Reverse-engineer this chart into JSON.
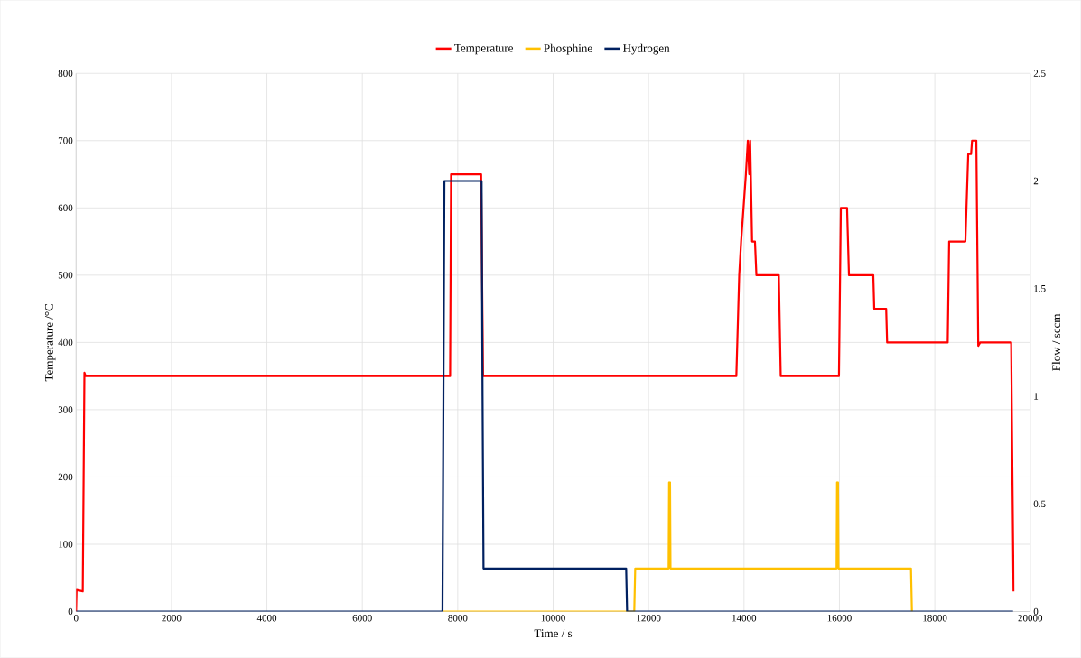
{
  "chart_data": {
    "type": "line",
    "xlabel": "Time / s",
    "ylabel": "Temperature /°C",
    "y2label": "Flow / sccm",
    "xlim": [
      0,
      20000
    ],
    "xticks": [
      0,
      2000,
      4000,
      6000,
      8000,
      10000,
      12000,
      14000,
      16000,
      18000,
      20000
    ],
    "ylim": [
      0,
      800
    ],
    "yticks": [
      0,
      100,
      200,
      300,
      400,
      500,
      600,
      700,
      800
    ],
    "y2lim": [
      0,
      2.5
    ],
    "y2ticks": [
      0,
      0.5,
      1,
      1.5,
      2,
      2.5
    ],
    "grid": true,
    "legend": "top",
    "series": [
      {
        "name": "Temperature",
        "color": "#ff0000",
        "x": [
          0,
          10,
          140,
          175,
          200,
          7840,
          7860,
          8490,
          8530,
          13840,
          13860,
          13880,
          13900,
          13940,
          13990,
          14040,
          14080,
          14110,
          14130,
          14170,
          14230,
          14260,
          14730,
          14770,
          15990,
          16030,
          16160,
          16200,
          16710,
          16730,
          16980,
          17000,
          18270,
          18300,
          18640,
          18700,
          18760,
          18780,
          18870,
          18910,
          18950,
          19600,
          19650
        ],
        "values": [
          0,
          32,
          30,
          355,
          350,
          350,
          650,
          650,
          350,
          350,
          400,
          450,
          500,
          550,
          600,
          650,
          700,
          650,
          700,
          550,
          550,
          500,
          500,
          350,
          350,
          600,
          600,
          500,
          500,
          450,
          450,
          400,
          400,
          550,
          550,
          680,
          680,
          700,
          700,
          395,
          400,
          400,
          30
        ]
      },
      {
        "name": "Phosphine",
        "color": "#ffc000",
        "axis": "y2",
        "x": [
          7690,
          11700,
          11720,
          12420,
          12430,
          12450,
          12460,
          15940,
          15950,
          15970,
          15980,
          17500,
          17520
        ],
        "values": [
          0,
          0,
          0.2,
          0.2,
          0.6,
          0.6,
          0.2,
          0.2,
          0.6,
          0.6,
          0.2,
          0.2,
          0
        ]
      },
      {
        "name": "Hydrogen",
        "color": "#002060",
        "axis": "y2",
        "x": [
          0,
          7680,
          7700,
          7720,
          8500,
          8520,
          8540,
          11530,
          11550,
          19640
        ],
        "values": [
          0,
          0,
          1.0,
          2.0,
          2.0,
          1.0,
          0.2,
          0.2,
          0,
          0
        ]
      }
    ]
  }
}
